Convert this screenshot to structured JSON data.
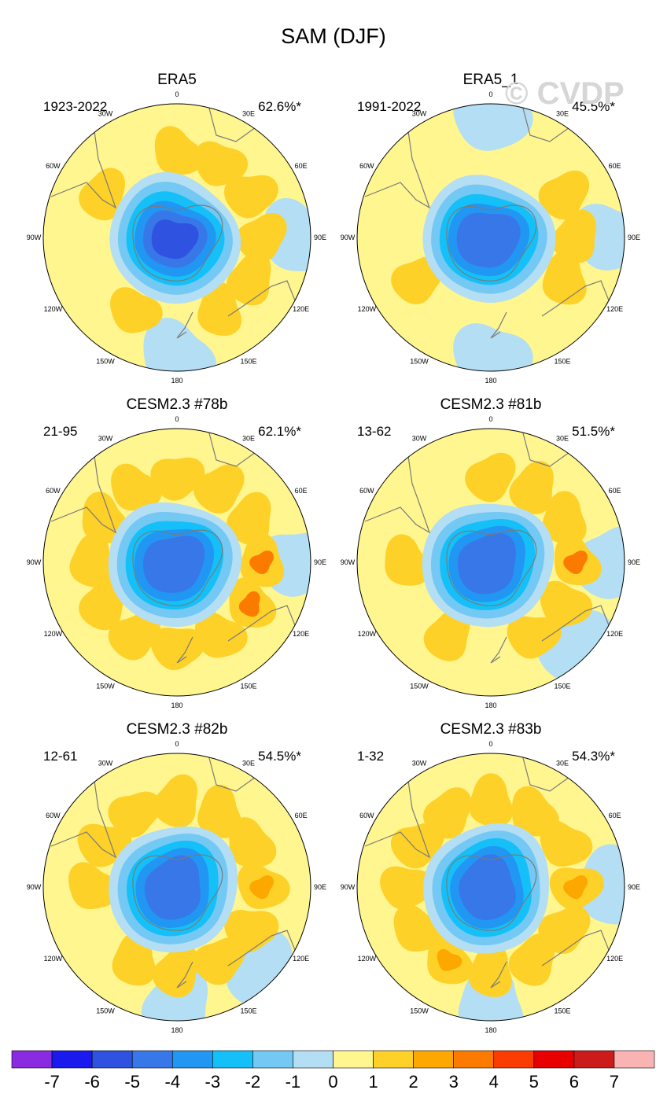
{
  "figure": {
    "title": "SAM (DJF)",
    "watermark": "© CVDP"
  },
  "longitude_labels": [
    "0",
    "30E",
    "60E",
    "90E",
    "120E",
    "150E",
    "180",
    "150W",
    "120W",
    "90W",
    "60W",
    "30W"
  ],
  "panels": [
    {
      "title": "ERA5",
      "period": "1923-2022",
      "variance": "62.6%*",
      "features": {
        "center": -6,
        "ring": [
          1,
          1,
          1,
          1,
          1,
          1,
          0,
          1,
          0,
          0,
          1,
          0
        ],
        "ring_peak": 1,
        "ocean_blue": [
          "east",
          "south"
        ]
      }
    },
    {
      "title": "ERA5_1",
      "period": "1991-2022",
      "variance": "45.5%*",
      "features": {
        "center": -5,
        "ring": [
          0,
          0,
          1,
          1,
          1,
          0,
          0,
          0,
          1,
          0,
          0,
          0
        ],
        "ring_peak": 1,
        "ocean_blue": [
          "north",
          "east",
          "south"
        ]
      }
    },
    {
      "title": "CESM2.3 #78b",
      "period": "21-95",
      "variance": "62.1%*",
      "features": {
        "center": -5,
        "ring": [
          1,
          1,
          1,
          2,
          2,
          1,
          1,
          1,
          1,
          1,
          1,
          1
        ],
        "ring_peak": 3,
        "ocean_blue": [
          "east"
        ]
      }
    },
    {
      "title": "CESM2.3 #81b",
      "period": "13-62",
      "variance": "51.5%*",
      "features": {
        "center": -5,
        "ring": [
          1,
          1,
          1,
          2,
          1,
          1,
          0,
          1,
          0,
          1,
          0,
          0
        ],
        "ring_peak": 3,
        "ocean_blue": [
          "east",
          "southeast"
        ]
      }
    },
    {
      "title": "CESM2.3 #82b",
      "period": "12-61",
      "variance": "54.5%*",
      "features": {
        "center": -5,
        "ring": [
          1,
          1,
          1,
          2,
          1,
          1,
          1,
          1,
          0,
          1,
          1,
          1
        ],
        "ring_peak": 2,
        "ocean_blue": [
          "south",
          "southeast"
        ]
      }
    },
    {
      "title": "CESM2.3 #83b",
      "period": "1-32",
      "variance": "54.3%*",
      "features": {
        "center": -5,
        "ring": [
          1,
          1,
          1,
          2,
          1,
          1,
          1,
          2,
          1,
          1,
          1,
          1
        ],
        "ring_peak": 2,
        "ocean_blue": [
          "east",
          "south"
        ]
      }
    }
  ],
  "colorbar": {
    "labels": [
      "-7",
      "-6",
      "-5",
      "-4",
      "-3",
      "-2",
      "-1",
      "0",
      "1",
      "2",
      "3",
      "4",
      "5",
      "6",
      "7"
    ],
    "colors": [
      "#8a2be2",
      "#1a1aee",
      "#2f52e0",
      "#3877e8",
      "#2196f3",
      "#14c0f7",
      "#73c8f4",
      "#b4def3",
      "#fff68f",
      "#fdd128",
      "#fca800",
      "#fb7b00",
      "#fa3c00",
      "#e80000",
      "#cc1b1b",
      "#f9b3b3"
    ]
  },
  "palette": {
    "land_outline": "#7a7a7a",
    "level_colors": {
      "-6": "#2f52e0",
      "-5": "#3877e8",
      "-4": "#2196f3",
      "-3": "#14c0f7",
      "-2": "#73c8f4",
      "-1": "#b4def3",
      "0": "#fff68f",
      "1": "#fdd128",
      "2": "#fca800",
      "3": "#fb7b00"
    }
  }
}
